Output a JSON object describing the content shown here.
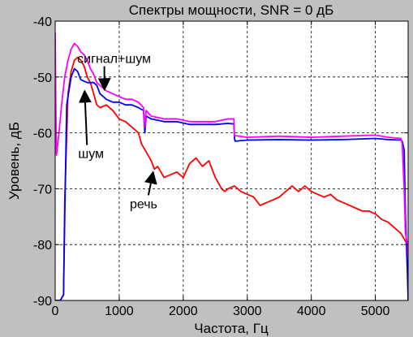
{
  "chart_data": {
    "type": "line",
    "title": "Спектры мощности, SNR = 0 дБ",
    "xlabel": "Частота, Гц",
    "ylabel": "Уровень, дБ",
    "xlim": [
      0,
      5512
    ],
    "ylim": [
      -90,
      -40
    ],
    "xticks": [
      0,
      1000,
      2000,
      3000,
      4000,
      5000
    ],
    "yticks": [
      -90,
      -80,
      -70,
      -60,
      -50,
      -40
    ],
    "xtick_labels": [
      "0",
      "1000",
      "2000",
      "3000",
      "4000",
      "5000"
    ],
    "ytick_labels": [
      "-90",
      "-80",
      "-70",
      "-60",
      "-50",
      "-40"
    ],
    "grid": true,
    "series": [
      {
        "key": "noise",
        "color": "#0000ff",
        "x": [
          0,
          80,
          130,
          150,
          180,
          250,
          300,
          350,
          400,
          500,
          600,
          650,
          700,
          800,
          900,
          1000,
          1100,
          1200,
          1300,
          1380,
          1400,
          1420,
          1500,
          1700,
          1900,
          2100,
          2300,
          2500,
          2700,
          2790,
          2800,
          2810,
          3000,
          3500,
          4000,
          4500,
          5000,
          5200,
          5400,
          5420,
          5450,
          5470,
          5500,
          5512
        ],
        "y": [
          -90,
          -90,
          -89,
          -75,
          -55,
          -50,
          -48.5,
          -49,
          -50.5,
          -51,
          -51,
          -51.5,
          -53,
          -54,
          -54.5,
          -54.5,
          -55,
          -55,
          -55.5,
          -56,
          -60,
          -57,
          -57.5,
          -58,
          -58,
          -58.5,
          -58.5,
          -58.5,
          -58.3,
          -58.4,
          -61,
          -61.5,
          -61.3,
          -61.2,
          -61.3,
          -61.2,
          -61,
          -61.2,
          -61.3,
          -61.5,
          -63,
          -75,
          -85,
          -90
        ]
      },
      {
        "key": "signal_noise",
        "color": "#ff00ff",
        "x": [
          0,
          10,
          20,
          60,
          100,
          150,
          200,
          250,
          300,
          350,
          400,
          450,
          500,
          550,
          600,
          650,
          700,
          800,
          900,
          1000,
          1100,
          1200,
          1300,
          1380,
          1400,
          1420,
          1500,
          1700,
          1900,
          2100,
          2300,
          2500,
          2700,
          2790,
          2800,
          2810,
          3000,
          3500,
          4000,
          4500,
          5000,
          5200,
          5400,
          5420,
          5450,
          5470,
          5500,
          5512
        ],
        "y": [
          -42,
          -55,
          -64,
          -60,
          -55,
          -50,
          -47,
          -45,
          -44,
          -44.5,
          -45.5,
          -46,
          -47,
          -48.5,
          -49.5,
          -51,
          -51.5,
          -52.5,
          -53,
          -53.5,
          -54,
          -54,
          -54.5,
          -55.5,
          -59,
          -56,
          -57,
          -57.5,
          -57.5,
          -58,
          -58,
          -58,
          -57.5,
          -57.5,
          -60.5,
          -60.5,
          -60.8,
          -60.6,
          -60.8,
          -60.6,
          -60.4,
          -60.8,
          -61,
          -62,
          -70,
          -78,
          -80,
          -82
        ]
      },
      {
        "key": "speech",
        "color": "#ff0000",
        "x": [
          0,
          80,
          130,
          150,
          200,
          250,
          300,
          350,
          400,
          450,
          500,
          550,
          600,
          650,
          700,
          800,
          900,
          1000,
          1100,
          1200,
          1300,
          1350,
          1400,
          1450,
          1500,
          1550,
          1600,
          1700,
          1800,
          1900,
          2000,
          2100,
          2200,
          2300,
          2400,
          2500,
          2600,
          2650,
          2700,
          2800,
          2900,
          3000,
          3100,
          3200,
          3300,
          3400,
          3500,
          3600,
          3700,
          3800,
          3900,
          4000,
          4100,
          4200,
          4300,
          4400,
          4500,
          4600,
          4700,
          4800,
          4900,
          5000,
          5100,
          5200,
          5300,
          5400,
          5450,
          5500,
          5512
        ],
        "y": [
          -90,
          -90,
          -89,
          -72,
          -53,
          -49,
          -47,
          -46.5,
          -47,
          -48,
          -50,
          -51,
          -53,
          -55,
          -55.5,
          -55,
          -56,
          -57.5,
          -58,
          -59,
          -60,
          -62,
          -63,
          -64,
          -65,
          -66.5,
          -66,
          -68,
          -67.5,
          -67,
          -68,
          -65.5,
          -64.5,
          -66,
          -65,
          -68,
          -70,
          -70.5,
          -70,
          -69.5,
          -70.5,
          -71,
          -71.5,
          -73,
          -72.5,
          -72,
          -71.5,
          -70.5,
          -69.5,
          -70.5,
          -69.5,
          -70.5,
          -71,
          -71.5,
          -71,
          -72,
          -72.5,
          -73,
          -73.5,
          -74,
          -74,
          -74.5,
          -75.5,
          -76,
          -77,
          -78,
          -79,
          -80,
          -81
        ]
      }
    ],
    "annotations": [
      {
        "key": "signal_noise",
        "text": "сигнал+шум",
        "x": 920,
        "y": -47.5,
        "tip_x": 770,
        "tip_y": -52.3
      },
      {
        "key": "noise",
        "text": "шум",
        "x": 560,
        "y": -64.5,
        "tip_x": 460,
        "tip_y": -52.5
      },
      {
        "key": "speech",
        "text": "речь",
        "x": 1380,
        "y": -73.5,
        "tip_x": 1530,
        "tip_y": -67
      }
    ]
  }
}
